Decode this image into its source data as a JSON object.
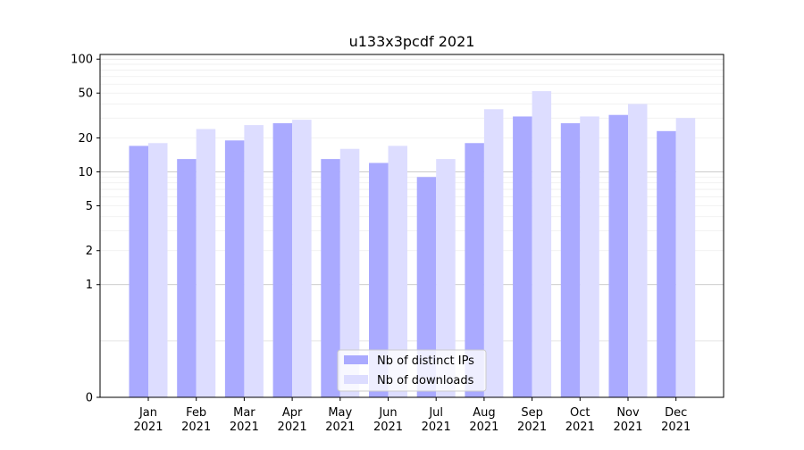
{
  "chart_data": {
    "type": "bar",
    "title": "u133x3pcdf 2021",
    "xlabel": "",
    "ylabel": "",
    "yscale": "symlog",
    "y_ticks": [
      0,
      1,
      2,
      5,
      10,
      20,
      50,
      100
    ],
    "ylim": [
      0,
      110
    ],
    "grid": "horizontal",
    "legend_position": "bottom-center",
    "categories": [
      [
        "Jan",
        "2021"
      ],
      [
        "Feb",
        "2021"
      ],
      [
        "Mar",
        "2021"
      ],
      [
        "Apr",
        "2021"
      ],
      [
        "May",
        "2021"
      ],
      [
        "Jun",
        "2021"
      ],
      [
        "Jul",
        "2021"
      ],
      [
        "Aug",
        "2021"
      ],
      [
        "Sep",
        "2021"
      ],
      [
        "Oct",
        "2021"
      ],
      [
        "Nov",
        "2021"
      ],
      [
        "Dec",
        "2021"
      ]
    ],
    "series": [
      {
        "name": "Nb of distinct IPs",
        "color": "#aaaaff",
        "values": [
          17,
          13,
          19,
          27,
          13,
          12,
          9,
          18,
          31,
          27,
          32,
          23
        ]
      },
      {
        "name": "Nb of downloads",
        "color": "#ddddff",
        "values": [
          18,
          24,
          26,
          29,
          16,
          17,
          13,
          36,
          52,
          31,
          40,
          30
        ]
      }
    ]
  }
}
